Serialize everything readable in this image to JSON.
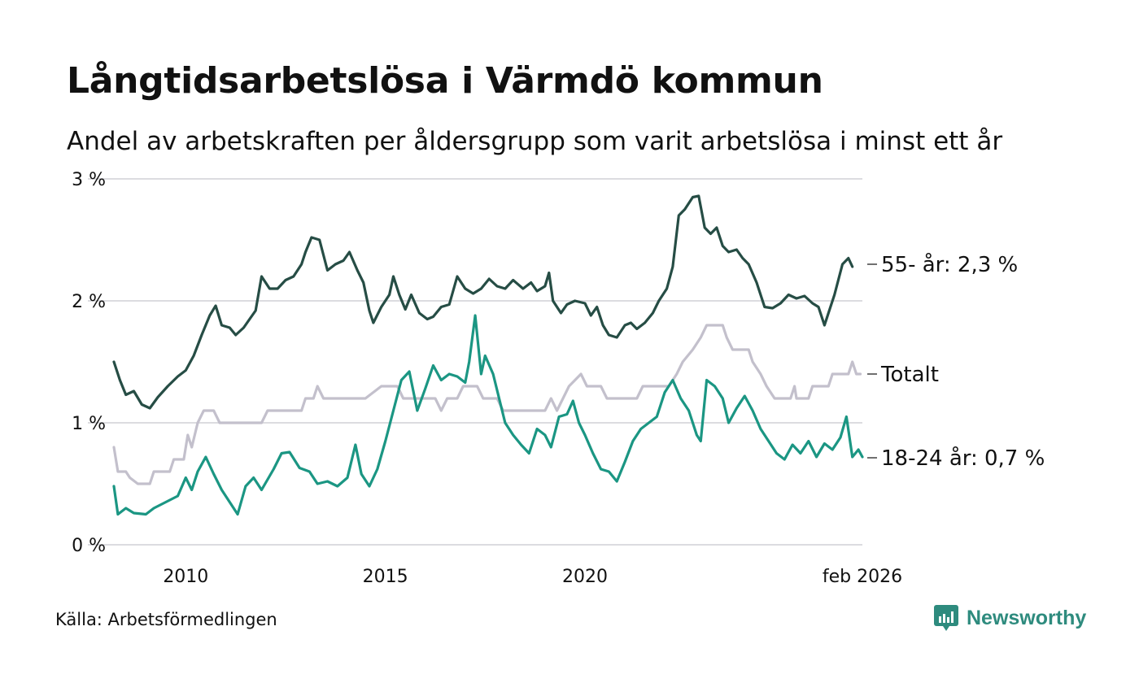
{
  "header": {
    "title": "Långtidsarbetslösa i Värmdö kommun",
    "subtitle": "Andel av arbetskraften per åldersgrupp som varit arbetslösa i minst ett år"
  },
  "footer": {
    "source": "Källa: Arbetsförmedlingen",
    "brand": "Newsworthy"
  },
  "colors": {
    "older": "#264d45",
    "total": "#c3c0cc",
    "young": "#1b9683",
    "grid": "#dcdce0",
    "brand": "#2e8b7e"
  },
  "chart_data": {
    "type": "line",
    "title": "Långtidsarbetslösa i Värmdö kommun",
    "xlabel": "",
    "ylabel": "",
    "xlim": [
      2008.2,
      2026.1
    ],
    "ylim": [
      0,
      3
    ],
    "y_ticks": [
      {
        "value": 0,
        "label": "0 %"
      },
      {
        "value": 1,
        "label": "1 %"
      },
      {
        "value": 2,
        "label": "2 %"
      },
      {
        "value": 3,
        "label": "3 %"
      }
    ],
    "x_ticks": [
      {
        "value": 2010,
        "label": "2010"
      },
      {
        "value": 2015,
        "label": "2015"
      },
      {
        "value": 2020,
        "label": "2020"
      },
      {
        "value": 2026.1,
        "label": "feb 2026"
      }
    ],
    "grid": true,
    "series": [
      {
        "name": "55- år",
        "end_label": "55- år: 2,3 %",
        "color": "#264d45",
        "points": [
          [
            2008.2,
            1.5
          ],
          [
            2008.35,
            1.35
          ],
          [
            2008.5,
            1.23
          ],
          [
            2008.7,
            1.26
          ],
          [
            2008.9,
            1.15
          ],
          [
            2009.1,
            1.12
          ],
          [
            2009.3,
            1.21
          ],
          [
            2009.55,
            1.3
          ],
          [
            2009.8,
            1.38
          ],
          [
            2010.0,
            1.43
          ],
          [
            2010.2,
            1.55
          ],
          [
            2010.4,
            1.72
          ],
          [
            2010.6,
            1.88
          ],
          [
            2010.75,
            1.96
          ],
          [
            2010.9,
            1.8
          ],
          [
            2011.1,
            1.78
          ],
          [
            2011.25,
            1.72
          ],
          [
            2011.45,
            1.78
          ],
          [
            2011.6,
            1.85
          ],
          [
            2011.75,
            1.92
          ],
          [
            2011.9,
            2.2
          ],
          [
            2012.1,
            2.1
          ],
          [
            2012.3,
            2.1
          ],
          [
            2012.5,
            2.17
          ],
          [
            2012.7,
            2.2
          ],
          [
            2012.9,
            2.3
          ],
          [
            2013.0,
            2.4
          ],
          [
            2013.15,
            2.52
          ],
          [
            2013.35,
            2.5
          ],
          [
            2013.55,
            2.25
          ],
          [
            2013.75,
            2.3
          ],
          [
            2013.95,
            2.33
          ],
          [
            2014.1,
            2.4
          ],
          [
            2014.3,
            2.25
          ],
          [
            2014.45,
            2.15
          ],
          [
            2014.6,
            1.92
          ],
          [
            2014.7,
            1.82
          ],
          [
            2014.9,
            1.95
          ],
          [
            2015.1,
            2.05
          ],
          [
            2015.2,
            2.2
          ],
          [
            2015.35,
            2.05
          ],
          [
            2015.5,
            1.93
          ],
          [
            2015.65,
            2.05
          ],
          [
            2015.85,
            1.9
          ],
          [
            2016.05,
            1.85
          ],
          [
            2016.2,
            1.87
          ],
          [
            2016.4,
            1.95
          ],
          [
            2016.6,
            1.97
          ],
          [
            2016.8,
            2.2
          ],
          [
            2017.0,
            2.1
          ],
          [
            2017.2,
            2.06
          ],
          [
            2017.4,
            2.1
          ],
          [
            2017.6,
            2.18
          ],
          [
            2017.8,
            2.12
          ],
          [
            2018.0,
            2.1
          ],
          [
            2018.2,
            2.17
          ],
          [
            2018.45,
            2.1
          ],
          [
            2018.65,
            2.15
          ],
          [
            2018.8,
            2.08
          ],
          [
            2019.0,
            2.12
          ],
          [
            2019.1,
            2.23
          ],
          [
            2019.2,
            2.0
          ],
          [
            2019.4,
            1.9
          ],
          [
            2019.55,
            1.97
          ],
          [
            2019.75,
            2.0
          ],
          [
            2020.0,
            1.98
          ],
          [
            2020.15,
            1.88
          ],
          [
            2020.3,
            1.95
          ],
          [
            2020.45,
            1.8
          ],
          [
            2020.6,
            1.72
          ],
          [
            2020.8,
            1.7
          ],
          [
            2021.0,
            1.8
          ],
          [
            2021.15,
            1.82
          ],
          [
            2021.3,
            1.77
          ],
          [
            2021.5,
            1.82
          ],
          [
            2021.7,
            1.9
          ],
          [
            2021.85,
            2.0
          ],
          [
            2022.05,
            2.1
          ],
          [
            2022.2,
            2.28
          ],
          [
            2022.35,
            2.7
          ],
          [
            2022.5,
            2.75
          ],
          [
            2022.7,
            2.85
          ],
          [
            2022.85,
            2.86
          ],
          [
            2023.0,
            2.6
          ],
          [
            2023.15,
            2.55
          ],
          [
            2023.3,
            2.6
          ],
          [
            2023.45,
            2.45
          ],
          [
            2023.6,
            2.4
          ],
          [
            2023.8,
            2.42
          ],
          [
            2023.95,
            2.35
          ],
          [
            2024.1,
            2.3
          ],
          [
            2024.3,
            2.15
          ],
          [
            2024.5,
            1.95
          ],
          [
            2024.7,
            1.94
          ],
          [
            2024.9,
            1.98
          ],
          [
            2025.1,
            2.05
          ],
          [
            2025.3,
            2.02
          ],
          [
            2025.5,
            2.04
          ],
          [
            2025.7,
            1.98
          ],
          [
            2025.85,
            1.95
          ],
          [
            2026.0,
            1.8
          ],
          [
            2026.1,
            1.9
          ],
          [
            2026.25,
            2.05
          ],
          [
            2026.45,
            2.3
          ],
          [
            2026.6,
            2.35
          ],
          [
            2026.7,
            2.28
          ]
        ]
      },
      {
        "name": "Totalt",
        "end_label": "Totalt",
        "color": "#c3c0cc",
        "points": [
          [
            2008.2,
            0.8
          ],
          [
            2008.3,
            0.6
          ],
          [
            2008.5,
            0.6
          ],
          [
            2008.6,
            0.55
          ],
          [
            2008.8,
            0.5
          ],
          [
            2009.1,
            0.5
          ],
          [
            2009.2,
            0.6
          ],
          [
            2009.6,
            0.6
          ],
          [
            2009.7,
            0.7
          ],
          [
            2009.95,
            0.7
          ],
          [
            2010.05,
            0.9
          ],
          [
            2010.15,
            0.8
          ],
          [
            2010.3,
            1.0
          ],
          [
            2010.45,
            1.1
          ],
          [
            2010.7,
            1.1
          ],
          [
            2010.85,
            1.0
          ],
          [
            2011.9,
            1.0
          ],
          [
            2012.05,
            1.1
          ],
          [
            2012.9,
            1.1
          ],
          [
            2013.0,
            1.2
          ],
          [
            2013.2,
            1.2
          ],
          [
            2013.3,
            1.3
          ],
          [
            2013.45,
            1.2
          ],
          [
            2014.5,
            1.2
          ],
          [
            2014.9,
            1.3
          ],
          [
            2015.3,
            1.3
          ],
          [
            2015.45,
            1.2
          ],
          [
            2016.25,
            1.2
          ],
          [
            2016.4,
            1.1
          ],
          [
            2016.55,
            1.2
          ],
          [
            2016.8,
            1.2
          ],
          [
            2016.95,
            1.3
          ],
          [
            2017.3,
            1.3
          ],
          [
            2017.45,
            1.2
          ],
          [
            2017.8,
            1.2
          ],
          [
            2017.95,
            1.1
          ],
          [
            2019.0,
            1.1
          ],
          [
            2019.15,
            1.2
          ],
          [
            2019.3,
            1.1
          ],
          [
            2019.6,
            1.3
          ],
          [
            2019.9,
            1.4
          ],
          [
            2020.05,
            1.3
          ],
          [
            2020.4,
            1.3
          ],
          [
            2020.55,
            1.2
          ],
          [
            2021.3,
            1.2
          ],
          [
            2021.45,
            1.3
          ],
          [
            2022.1,
            1.3
          ],
          [
            2022.3,
            1.4
          ],
          [
            2022.45,
            1.5
          ],
          [
            2022.7,
            1.6
          ],
          [
            2022.9,
            1.7
          ],
          [
            2023.05,
            1.8
          ],
          [
            2023.45,
            1.8
          ],
          [
            2023.55,
            1.7
          ],
          [
            2023.7,
            1.6
          ],
          [
            2024.1,
            1.6
          ],
          [
            2024.2,
            1.5
          ],
          [
            2024.4,
            1.4
          ],
          [
            2024.55,
            1.3
          ],
          [
            2024.75,
            1.2
          ],
          [
            2025.15,
            1.2
          ],
          [
            2025.25,
            1.3
          ],
          [
            2025.3,
            1.2
          ],
          [
            2025.6,
            1.2
          ],
          [
            2025.7,
            1.3
          ],
          [
            2026.1,
            1.3
          ],
          [
            2026.2,
            1.4
          ],
          [
            2026.6,
            1.4
          ],
          [
            2026.7,
            1.5
          ],
          [
            2026.8,
            1.4
          ],
          [
            2026.9,
            1.4
          ]
        ]
      },
      {
        "name": "18-24 år",
        "end_label": "18-24 år: 0,7 %",
        "color": "#1b9683",
        "points": [
          [
            2008.2,
            0.48
          ],
          [
            2008.3,
            0.25
          ],
          [
            2008.5,
            0.3
          ],
          [
            2008.7,
            0.26
          ],
          [
            2009.0,
            0.25
          ],
          [
            2009.2,
            0.3
          ],
          [
            2009.5,
            0.35
          ],
          [
            2009.8,
            0.4
          ],
          [
            2010.0,
            0.55
          ],
          [
            2010.15,
            0.45
          ],
          [
            2010.3,
            0.6
          ],
          [
            2010.5,
            0.72
          ],
          [
            2010.7,
            0.58
          ],
          [
            2010.9,
            0.45
          ],
          [
            2011.1,
            0.35
          ],
          [
            2011.3,
            0.25
          ],
          [
            2011.5,
            0.48
          ],
          [
            2011.7,
            0.55
          ],
          [
            2011.9,
            0.45
          ],
          [
            2012.2,
            0.62
          ],
          [
            2012.4,
            0.75
          ],
          [
            2012.6,
            0.76
          ],
          [
            2012.85,
            0.63
          ],
          [
            2013.1,
            0.6
          ],
          [
            2013.3,
            0.5
          ],
          [
            2013.55,
            0.52
          ],
          [
            2013.8,
            0.48
          ],
          [
            2014.05,
            0.55
          ],
          [
            2014.25,
            0.82
          ],
          [
            2014.4,
            0.58
          ],
          [
            2014.6,
            0.48
          ],
          [
            2014.8,
            0.62
          ],
          [
            2015.0,
            0.85
          ],
          [
            2015.2,
            1.1
          ],
          [
            2015.4,
            1.35
          ],
          [
            2015.6,
            1.42
          ],
          [
            2015.8,
            1.1
          ],
          [
            2016.0,
            1.28
          ],
          [
            2016.2,
            1.47
          ],
          [
            2016.4,
            1.35
          ],
          [
            2016.6,
            1.4
          ],
          [
            2016.8,
            1.38
          ],
          [
            2017.0,
            1.33
          ],
          [
            2017.1,
            1.5
          ],
          [
            2017.25,
            1.88
          ],
          [
            2017.4,
            1.4
          ],
          [
            2017.5,
            1.55
          ],
          [
            2017.7,
            1.4
          ],
          [
            2017.85,
            1.2
          ],
          [
            2018.0,
            1.0
          ],
          [
            2018.2,
            0.9
          ],
          [
            2018.4,
            0.82
          ],
          [
            2018.6,
            0.75
          ],
          [
            2018.8,
            0.95
          ],
          [
            2019.0,
            0.9
          ],
          [
            2019.15,
            0.8
          ],
          [
            2019.35,
            1.05
          ],
          [
            2019.55,
            1.07
          ],
          [
            2019.7,
            1.18
          ],
          [
            2019.85,
            1.0
          ],
          [
            2020.0,
            0.9
          ],
          [
            2020.2,
            0.75
          ],
          [
            2020.4,
            0.62
          ],
          [
            2020.6,
            0.6
          ],
          [
            2020.8,
            0.52
          ],
          [
            2021.0,
            0.68
          ],
          [
            2021.2,
            0.85
          ],
          [
            2021.4,
            0.95
          ],
          [
            2021.6,
            1.0
          ],
          [
            2021.8,
            1.05
          ],
          [
            2022.0,
            1.25
          ],
          [
            2022.2,
            1.35
          ],
          [
            2022.4,
            1.2
          ],
          [
            2022.6,
            1.1
          ],
          [
            2022.8,
            0.9
          ],
          [
            2022.9,
            0.85
          ],
          [
            2023.05,
            1.35
          ],
          [
            2023.25,
            1.3
          ],
          [
            2023.45,
            1.2
          ],
          [
            2023.6,
            1.0
          ],
          [
            2023.8,
            1.12
          ],
          [
            2024.0,
            1.22
          ],
          [
            2024.2,
            1.1
          ],
          [
            2024.4,
            0.95
          ],
          [
            2024.6,
            0.85
          ],
          [
            2024.8,
            0.75
          ],
          [
            2025.0,
            0.7
          ],
          [
            2025.2,
            0.82
          ],
          [
            2025.4,
            0.75
          ],
          [
            2025.6,
            0.85
          ],
          [
            2025.8,
            0.72
          ],
          [
            2026.0,
            0.83
          ],
          [
            2026.2,
            0.78
          ],
          [
            2026.4,
            0.88
          ],
          [
            2026.55,
            1.05
          ],
          [
            2026.7,
            0.72
          ],
          [
            2026.85,
            0.78
          ],
          [
            2026.95,
            0.72
          ]
        ]
      }
    ]
  }
}
